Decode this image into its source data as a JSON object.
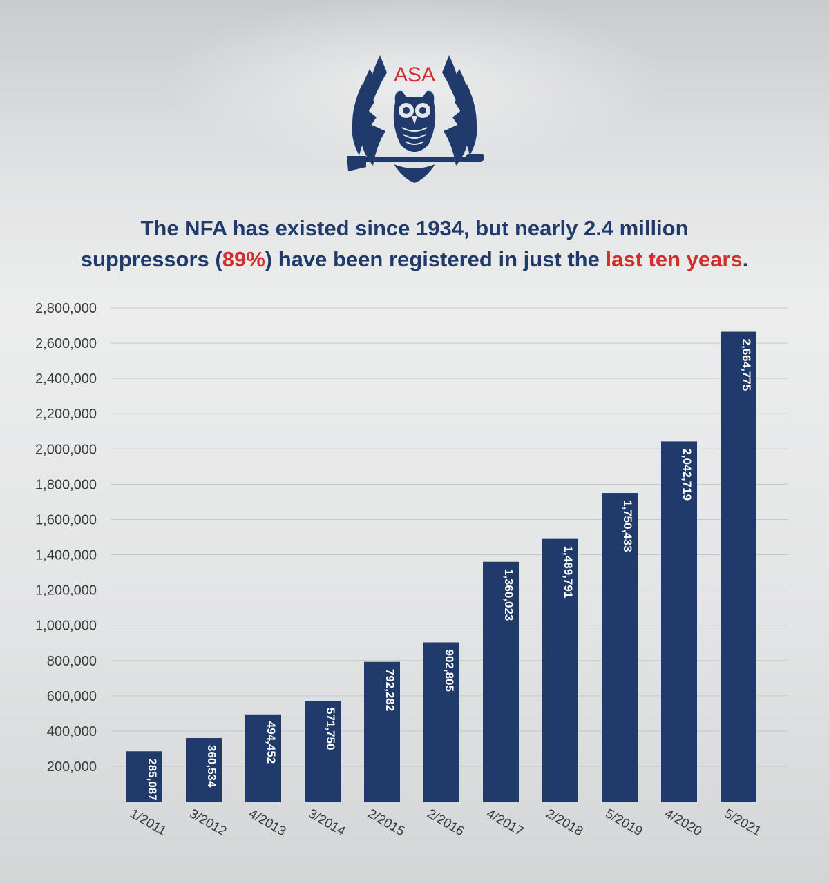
{
  "logo": {
    "text": "ASA",
    "icon": "owl-rifle-emblem-icon"
  },
  "headline": {
    "line1": "The NFA has existed since 1934, but nearly 2.4 million",
    "line2_pre": "suppressors (",
    "line2_pct": "89%",
    "line2_mid": ") have been registered in just the ",
    "line2_red": "last ten years",
    "line2_end": "."
  },
  "colors": {
    "bar": "#1f3a6b",
    "accent": "#d22e2c",
    "text": "#1f3a6b"
  },
  "chart_data": {
    "type": "bar",
    "categories": [
      "1/2011",
      "3/2012",
      "4/2013",
      "3/2014",
      "2/2015",
      "2/2016",
      "4/2017",
      "2/2018",
      "5/2019",
      "4/2020",
      "5/2021"
    ],
    "values": [
      285087,
      360534,
      494452,
      571750,
      792282,
      902805,
      1360023,
      1489791,
      1750433,
      2042719,
      2664775
    ],
    "data_labels": [
      "285,087",
      "360,534",
      "494,452",
      "571,750",
      "792,282",
      "902,805",
      "1,360,023",
      "1,489,791",
      "1,750,433",
      "2,042,719",
      "2,664,775"
    ],
    "y_ticks": [
      "200,000",
      "400,000",
      "600,000",
      "800,000",
      "1,000,000",
      "1,200,000",
      "1,400,000",
      "1,600,000",
      "1,800,000",
      "2,000,000",
      "2,200,000",
      "2,400,000",
      "2,600,000",
      "2,800,000"
    ],
    "ylim": [
      150000,
      2800000
    ],
    "grid": true,
    "legend": "none"
  }
}
